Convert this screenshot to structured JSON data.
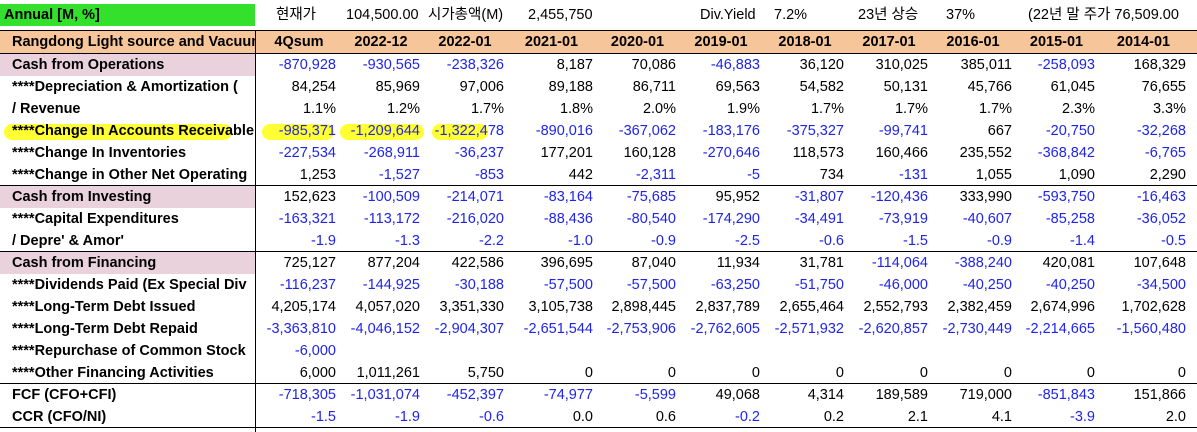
{
  "header": {
    "title": "Annual [M, %]",
    "price_label": "현재가",
    "price_value": "104,500.00",
    "mcap_label": "시가총액(M)",
    "mcap_value": "2,455,750",
    "dy_label": "Div.Yield",
    "dy_value": "7.2%",
    "rise_label": "23년 상승",
    "rise_value": "37%",
    "prev_close": "(22년 말 주가 76,509.00"
  },
  "colors": {
    "title_bg": "#33e02b",
    "header_bg": "#f7c59a",
    "section_bg": "#ead2dc",
    "negative": "#1f24e8",
    "highlight": "#ffff33"
  },
  "company": "Rangdong Light source and Vacuum",
  "columns": [
    "4Qsum",
    "2022-12",
    "2022-01",
    "2021-01",
    "2020-01",
    "2019-01",
    "2018-01",
    "2017-01",
    "2016-01",
    "2015-01",
    "2014-01"
  ],
  "rows": [
    {
      "label": "Cash from Operations",
      "section": true,
      "values": [
        "-870,928",
        "-930,565",
        "-238,326",
        "8,187",
        "70,086",
        "-46,883",
        "36,120",
        "310,025",
        "385,011",
        "-258,093",
        "168,329"
      ]
    },
    {
      "label": "****Depreciation & Amortization (",
      "values": [
        "84,254",
        "85,969",
        "97,006",
        "89,188",
        "86,711",
        "69,563",
        "54,582",
        "50,131",
        "45,766",
        "61,045",
        "76,655"
      ]
    },
    {
      "label": "  / Revenue",
      "values": [
        "1.1%",
        "1.2%",
        "1.7%",
        "1.8%",
        "2.0%",
        "1.9%",
        "1.7%",
        "1.7%",
        "1.7%",
        "2.3%",
        "3.3%"
      ]
    },
    {
      "label": "****Change In Accounts Receivable",
      "highlight": true,
      "values": [
        "-985,371",
        "-1,209,644",
        "-1,322,478",
        "-890,016",
        "-367,062",
        "-183,176",
        "-375,327",
        "-99,741",
        "667",
        "-20,750",
        "-32,268"
      ]
    },
    {
      "label": "****Change In Inventories",
      "values": [
        "-227,534",
        "-268,911",
        "-36,237",
        "177,201",
        "160,128",
        "-270,646",
        "118,573",
        "160,466",
        "235,552",
        "-368,842",
        "-6,765"
      ]
    },
    {
      "label": "****Change in Other Net Operating",
      "values": [
        "1,253",
        "-1,527",
        "-853",
        "442",
        "-2,311",
        "-5",
        "734",
        "-131",
        "1,055",
        "1,090",
        "2,290"
      ]
    },
    {
      "label": "Cash from Investing",
      "section": true,
      "values": [
        "152,623",
        "-100,509",
        "-214,071",
        "-83,164",
        "-75,685",
        "95,952",
        "-31,807",
        "-120,436",
        "333,990",
        "-593,750",
        "-16,463"
      ]
    },
    {
      "label": "****Capital Expenditures",
      "values": [
        "-163,321",
        "-113,172",
        "-216,020",
        "-88,436",
        "-80,540",
        "-174,290",
        "-34,491",
        "-73,919",
        "-40,607",
        "-85,258",
        "-36,052"
      ]
    },
    {
      "label": "  / Depre' & Amor'",
      "values": [
        "-1.9",
        "-1.3",
        "-2.2",
        "-1.0",
        "-0.9",
        "-2.5",
        "-0.6",
        "-1.5",
        "-0.9",
        "-1.4",
        "-0.5"
      ]
    },
    {
      "label": "Cash from Financing",
      "section": true,
      "values": [
        "725,127",
        "877,204",
        "422,586",
        "396,695",
        "87,040",
        "11,934",
        "31,781",
        "-114,064",
        "-388,240",
        "420,081",
        "107,648"
      ]
    },
    {
      "label": "****Dividends Paid (Ex Special Div",
      "values": [
        "-116,237",
        "-144,925",
        "-30,188",
        "-57,500",
        "-57,500",
        "-63,250",
        "-51,750",
        "-46,000",
        "-40,250",
        "-40,250",
        "-34,500"
      ]
    },
    {
      "label": "****Long-Term Debt Issued",
      "values": [
        "4,205,174",
        "4,057,020",
        "3,351,330",
        "3,105,738",
        "2,898,445",
        "2,837,789",
        "2,655,464",
        "2,552,793",
        "2,382,459",
        "2,674,996",
        "1,702,628"
      ]
    },
    {
      "label": "****Long-Term Debt Repaid",
      "values": [
        "-3,363,810",
        "-4,046,152",
        "-2,904,307",
        "-2,651,544",
        "-2,753,906",
        "-2,762,605",
        "-2,571,932",
        "-2,620,857",
        "-2,730,449",
        "-2,214,665",
        "-1,560,480"
      ]
    },
    {
      "label": "****Repurchase of Common Stock",
      "values": [
        "-6,000",
        "",
        "",
        "",
        "",
        "",
        "",
        "",
        "",
        "",
        ""
      ]
    },
    {
      "label": "****Other Financing Activities",
      "values": [
        "6,000",
        "1,011,261",
        "5,750",
        "0",
        "0",
        "0",
        "0",
        "0",
        "0",
        "0",
        "0"
      ]
    },
    {
      "label": "FCF (CFO+CFI)",
      "values": [
        "-718,305",
        "-1,031,074",
        "-452,397",
        "-74,977",
        "-5,599",
        "49,068",
        "4,314",
        "189,589",
        "719,000",
        "-851,843",
        "151,866"
      ]
    },
    {
      "label": "CCR (CFO/NI)",
      "values": [
        "-1.5",
        "-1.9",
        "-0.6",
        "0.0",
        "0.6",
        "-0.2",
        "0.2",
        "2.1",
        "4.1",
        "-3.9",
        "2.0"
      ]
    }
  ]
}
